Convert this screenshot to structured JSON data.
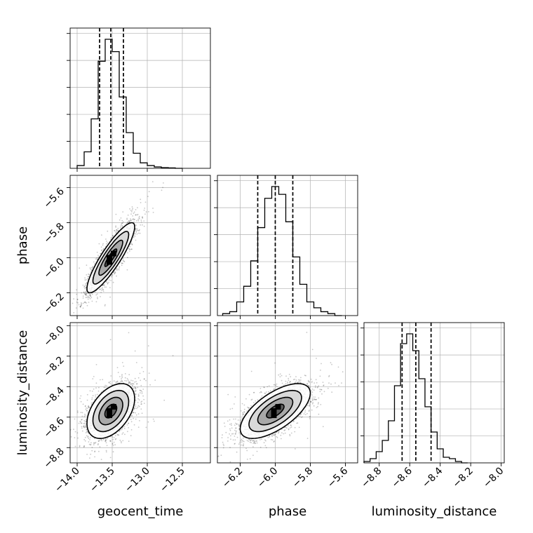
{
  "chart_data": {
    "type": "corner",
    "parameters": [
      "geocent_time",
      "phase",
      "luminosity_distance"
    ],
    "axis_labels": {
      "geocent_time": "geocent_time",
      "phase": "phase",
      "luminosity_distance": "luminosity_distance"
    },
    "ranges": {
      "geocent_time": [
        -14.1,
        -12.1
      ],
      "phase": [
        -6.33,
        -5.53
      ],
      "luminosity_distance": [
        -8.9,
        -7.98
      ]
    },
    "ticks": {
      "geocent_time": [
        -14.0,
        -13.5,
        -13.0,
        -12.5
      ],
      "phase": [
        -6.2,
        -6.0,
        -5.8,
        -5.6
      ],
      "luminosity_distance": [
        -8.8,
        -8.6,
        -8.4,
        -8.2,
        -8.0
      ]
    },
    "tick_labels": {
      "geocent_time": [
        "−14.0",
        "−13.5",
        "−13.0",
        "−12.5"
      ],
      "phase": [
        "−6.2",
        "−6.0",
        "−5.8",
        "−5.6"
      ],
      "luminosity_distance": [
        "−8.8",
        "−8.6",
        "−8.4",
        "−8.2",
        "−8.0"
      ]
    },
    "quantiles": {
      "geocent_time": [
        -13.68,
        -13.52,
        -13.34
      ],
      "phase": [
        -6.1,
        -6.0,
        -5.9
      ],
      "luminosity_distance": [
        -8.65,
        -8.56,
        -8.46
      ]
    },
    "histograms": {
      "geocent_time": {
        "edges": [
          -14.0,
          -13.9,
          -13.8,
          -13.7,
          -13.6,
          -13.5,
          -13.4,
          -13.3,
          -13.2,
          -13.1,
          -13.0,
          -12.9,
          -12.8,
          -12.7,
          -12.6,
          -12.5
        ],
        "counts": [
          2,
          12,
          36,
          78,
          94,
          85,
          52,
          26,
          11,
          4,
          2,
          1,
          0.5,
          0.3,
          0
        ]
      },
      "phase": {
        "edges": [
          -6.3,
          -6.26,
          -6.22,
          -6.18,
          -6.14,
          -6.1,
          -6.06,
          -6.02,
          -5.98,
          -5.94,
          -5.9,
          -5.86,
          -5.82,
          -5.78,
          -5.74,
          -5.7,
          -5.66,
          -5.62
        ],
        "counts": [
          1,
          2,
          7,
          15,
          28,
          45,
          60,
          66,
          62,
          48,
          30,
          16,
          7,
          4,
          2,
          1,
          0
        ]
      },
      "luminosity_distance": {
        "edges": [
          -8.9,
          -8.86,
          -8.82,
          -8.78,
          -8.74,
          -8.7,
          -8.66,
          -8.62,
          -8.58,
          -8.54,
          -8.5,
          -8.46,
          -8.42,
          -8.38,
          -8.34,
          -8.3,
          -8.26,
          -8.22
        ],
        "counts": [
          1,
          3,
          8,
          16,
          30,
          55,
          85,
          92,
          80,
          60,
          40,
          22,
          10,
          4,
          3,
          1,
          0
        ]
      }
    },
    "joint": [
      {
        "x": "geocent_time",
        "y": "phase",
        "mean": [
          -13.52,
          -6.0
        ],
        "sd": [
          0.17,
          0.1
        ],
        "corr": 0.88
      },
      {
        "x": "geocent_time",
        "y": "luminosity_distance",
        "mean": [
          -13.52,
          -8.56
        ],
        "sd": [
          0.17,
          0.09
        ],
        "corr": 0.45
      },
      {
        "x": "phase",
        "y": "luminosity_distance",
        "mean": [
          -6.0,
          -8.56
        ],
        "sd": [
          0.1,
          0.09
        ],
        "corr": 0.65
      }
    ],
    "contour_levels_sigma": [
      0.5,
      1.0,
      1.5,
      2.0
    ],
    "grid": true
  }
}
